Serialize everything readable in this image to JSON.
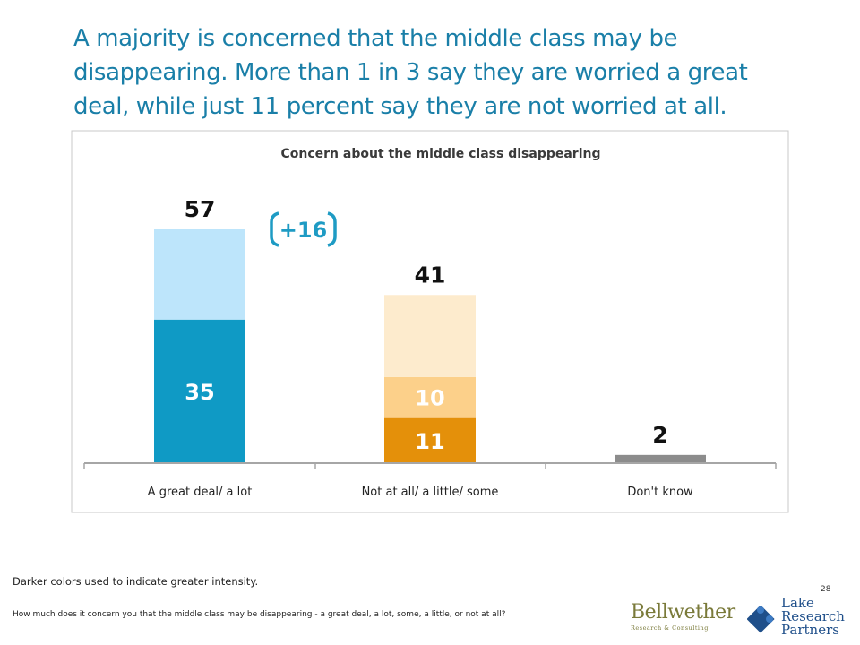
{
  "headline": "A majority is concerned that the middle class may be disappearing. More than 1 in 3 say they are worried a great deal, while just 11 percent say they are not worried at all.",
  "chart_data": {
    "type": "bar",
    "title": "Concern about the middle class disappearing",
    "categories": [
      "A great deal/ a lot",
      "Not at all/ a little/ some",
      "Don't know"
    ],
    "bars": [
      {
        "category": "A great deal/ a lot",
        "total": 57,
        "segments": [
          {
            "value": 35,
            "color": "#0f9ac5",
            "label": "35"
          },
          {
            "value": 22,
            "color": "#bde5fb",
            "label": ""
          }
        ]
      },
      {
        "category": "Not at all/ a little/ some",
        "total": 41,
        "segments": [
          {
            "value": 11,
            "color": "#e4900a",
            "label": "11"
          },
          {
            "value": 10,
            "color": "#fcd08a",
            "label": "10"
          },
          {
            "value": 20,
            "color": "#fdebcd",
            "label": ""
          }
        ]
      },
      {
        "category": "Don't know",
        "total": 2,
        "segments": [
          {
            "value": 2,
            "color": "#8c8c8c",
            "label": ""
          }
        ]
      }
    ],
    "annotation": "+16",
    "ylim": [
      0,
      60
    ]
  },
  "footnote": "Darker colors used to indicate greater intensity.",
  "slide_number": "28",
  "question": "How much does it concern you that the middle class may be disappearing - a great deal, a lot, some, a little, or not at all?",
  "logos": {
    "bellwether_name": "Bellwether",
    "bellwether_sub": "Research & Consulting",
    "lrp_line1": "Lake",
    "lrp_line2": "Research",
    "lrp_line3": "Partners"
  },
  "colors": {
    "headline": "#1a7fa8",
    "frame": "#c8c8c8",
    "axis": "#a6a6a6"
  }
}
